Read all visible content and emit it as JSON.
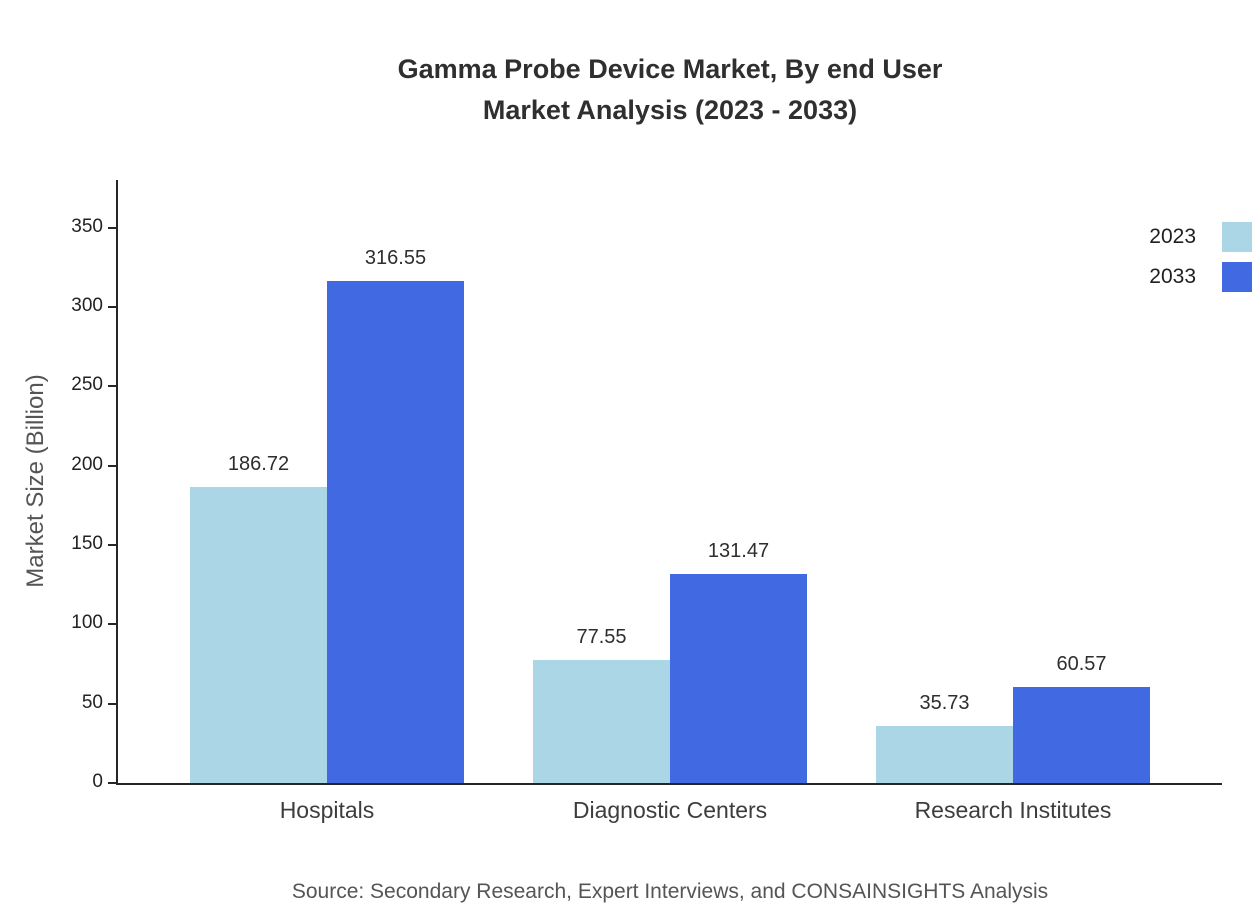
{
  "title": {
    "line1": "Gamma Probe Device Market, By end User",
    "line2": "Market Analysis (2023 - 2033)"
  },
  "y_axis": {
    "label": "Market Size (Billion)"
  },
  "source_note": "Source: Secondary Research, Expert Interviews, and CONSAINSIGHTS Analysis",
  "colors": {
    "series_2023": "#aad6e6",
    "series_2033": "#4169e1",
    "axis": "#262626"
  },
  "chart_data": {
    "type": "bar",
    "title": "Gamma Probe Device Market, By end User Market Analysis (2023 - 2033)",
    "categories": [
      "Hospitals",
      "Diagnostic Centers",
      "Research Institutes"
    ],
    "series": [
      {
        "name": "2023",
        "color": "#aad6e6",
        "values": [
          186.72,
          77.55,
          35.73
        ]
      },
      {
        "name": "2033",
        "color": "#4169e1",
        "values": [
          316.55,
          131.47,
          60.57
        ]
      }
    ],
    "xlabel": "",
    "ylabel": "Market Size (Billion)",
    "ylim": [
      0,
      380
    ],
    "yticks": [
      0,
      50,
      100,
      150,
      200,
      250,
      300,
      350
    ],
    "grid": false,
    "legend_position": "top-right",
    "bar_value_labels": true
  }
}
